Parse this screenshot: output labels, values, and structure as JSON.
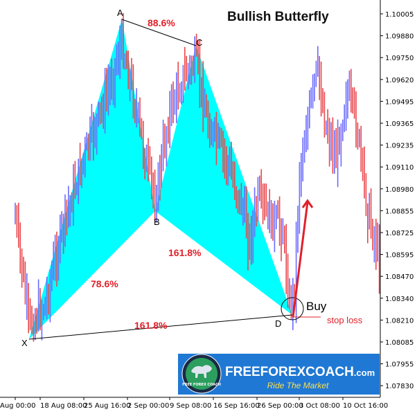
{
  "chart_data": {
    "type": "candlestick",
    "title": "Bullish Butterfly",
    "y_ticks": [
      "1.10005",
      "1.09880",
      "1.09750",
      "1.09620",
      "1.09495",
      "1.09365",
      "1.09235",
      "1.09110",
      "1.08980",
      "1.08855",
      "1.08725",
      "1.08595",
      "1.08470",
      "1.08340",
      "1.08210",
      "1.08085",
      "1.07955",
      "1.07830"
    ],
    "x_ticks": [
      "Aug 00:00",
      "18 Aug 08:00",
      "25 Aug 16:00",
      "2 Sep 00:00",
      "9 Sep 08:00",
      "16 Sep 16:00",
      "26 Sep 00:00",
      "3 Oct 08:00",
      "10 Oct 16:00"
    ],
    "pattern_points": [
      {
        "label": "X",
        "price": 1.082
      },
      {
        "label": "A",
        "price": 1.0998
      },
      {
        "label": "B",
        "price": 1.0887
      },
      {
        "label": "C",
        "price": 1.0987
      },
      {
        "label": "D",
        "price": 1.083
      }
    ],
    "ratios": [
      {
        "name": "AB",
        "text": "78.6%"
      },
      {
        "name": "BC",
        "text": "88.6%"
      },
      {
        "name": "CD",
        "text": "161.8%"
      },
      {
        "name": "XD",
        "text": "161.8%"
      }
    ],
    "annotations": {
      "buy": "Buy",
      "stop_loss": "stop loss"
    },
    "colors": {
      "fill": "#00ffff",
      "up": "#6b6bff",
      "down": "#e8474c",
      "accent": "#e0202a",
      "line": "#000000"
    }
  },
  "logo": {
    "name": "FREEFOREXCOACH",
    "suffix": ".com",
    "tagline": "Ride The Market",
    "badge_text": "FREE FOREX COACH"
  }
}
